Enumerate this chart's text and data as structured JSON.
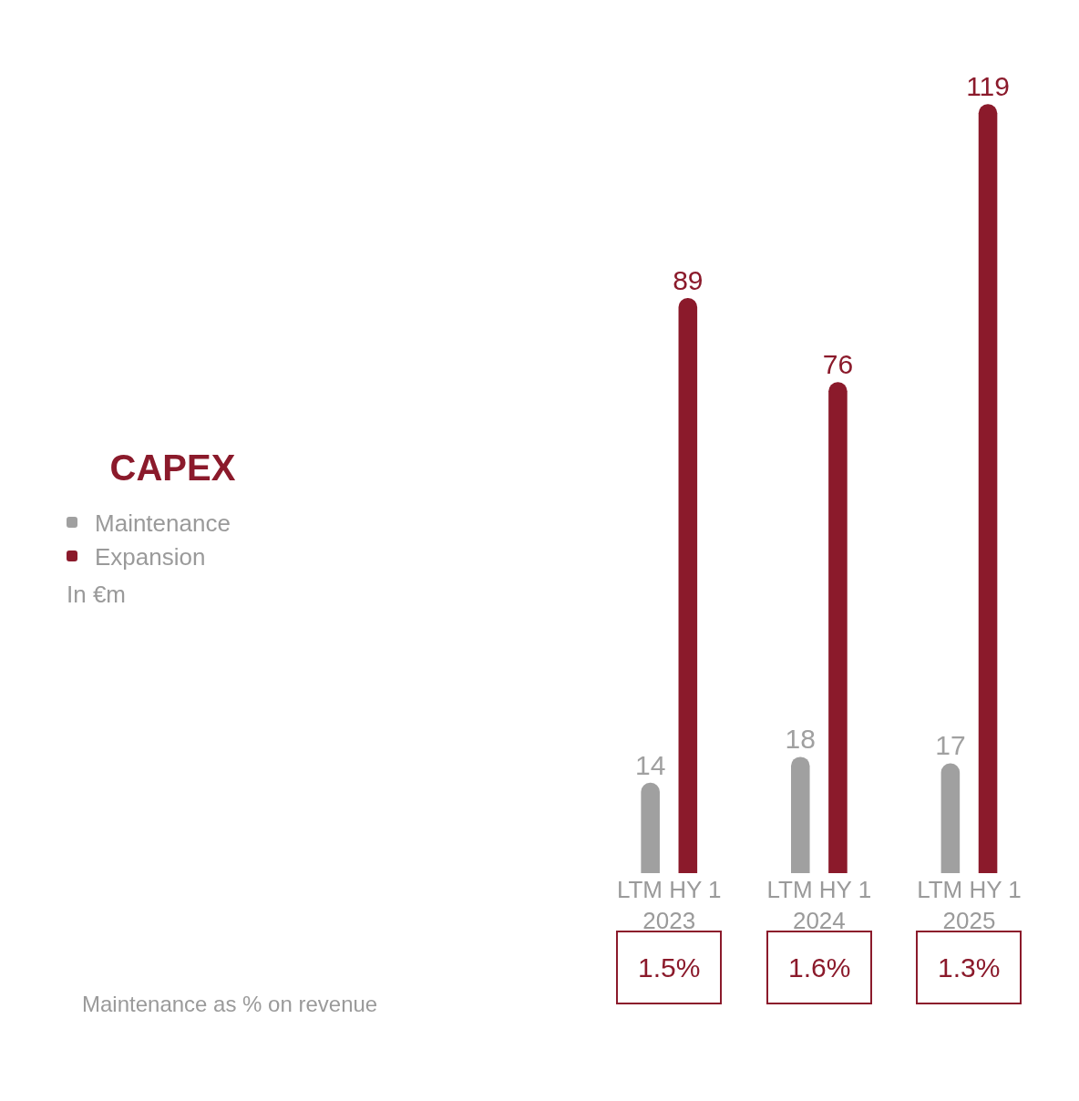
{
  "chart_data": {
    "type": "bar",
    "title": "CAPEX",
    "categories": [
      "LTM HY 1 2023",
      "LTM HY 1 2024",
      "LTM HY 1 2025"
    ],
    "series": [
      {
        "name": "Maintenance",
        "color": "#a0a0a0",
        "values": [
          14,
          18,
          17
        ]
      },
      {
        "name": "Expansion",
        "color": "#8b1a2b",
        "values": [
          89,
          76,
          119
        ]
      }
    ],
    "data_labels": true,
    "legend": "left",
    "annotations": [
      "1.5%",
      "1.6%",
      "1.3%",
      "In €m",
      "Maintenance as % on revenue"
    ]
  }
}
